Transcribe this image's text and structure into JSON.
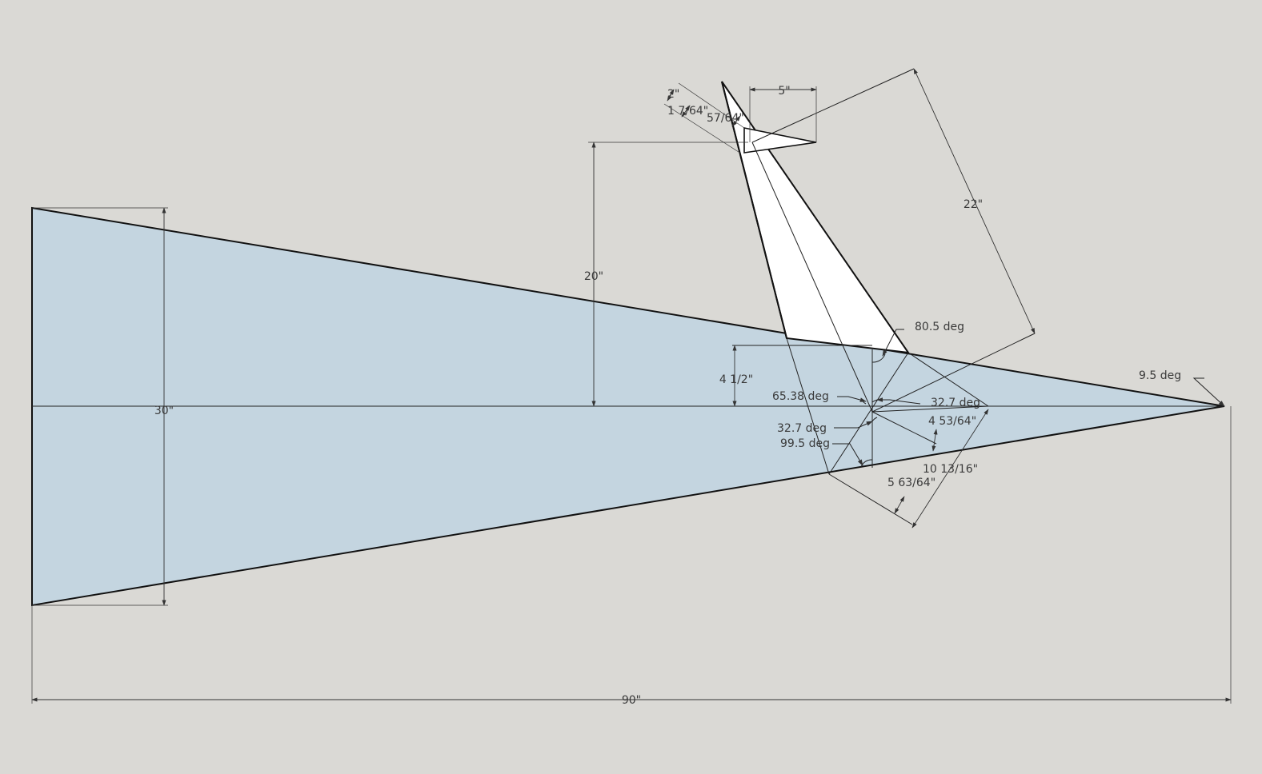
{
  "drawing": {
    "colors": {
      "background": "#dad9d5",
      "wedge_fill": "#c4d5e0",
      "fin_fill": "#ffffff",
      "line": "#111111"
    },
    "dimensions": {
      "overall_length": "90\"",
      "base_height": "30\"",
      "fin_offset": "20\"",
      "fin_length": "22\"",
      "tip_width": "5\"",
      "tip_small_a": "2\"",
      "tip_small_b": "1 7/64\"",
      "tip_small_c": "57/64\"",
      "root_half_height": "4 1/2\"",
      "root_perp_a": "4 53/64\"",
      "root_chord": "10 13/16\"",
      "root_perp_b": "5 63/64\""
    },
    "angles": {
      "nose_angle": "9.5 deg",
      "top_corner": "80.5 deg",
      "center_left": "65.38 deg",
      "center_right": "32.7 deg",
      "center_lower": "32.7 deg",
      "bottom_corner": "99.5 deg"
    }
  }
}
